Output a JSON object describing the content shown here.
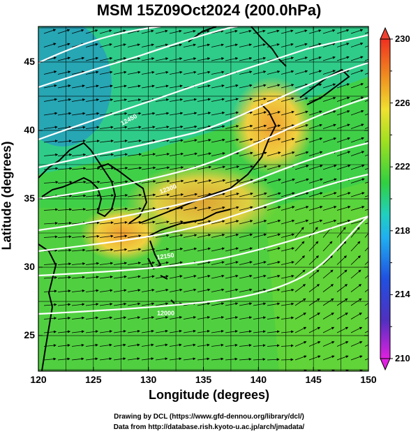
{
  "title": "MSM 15Z09Oct2024 (200.0hPa)",
  "x_axis": {
    "label": "Longitude (degrees)",
    "ticks": [
      "120",
      "125",
      "130",
      "135",
      "140",
      "145",
      "150"
    ],
    "range": [
      120,
      150
    ]
  },
  "y_axis": {
    "label": "Latitude  (degrees)",
    "ticks": [
      "25",
      "30",
      "35",
      "40",
      "45"
    ],
    "range": [
      22.4,
      47.6
    ]
  },
  "colorbar": {
    "ticks": [
      "210",
      "214",
      "218",
      "222",
      "226",
      "230"
    ],
    "range": [
      210,
      230
    ],
    "colors": [
      "#e020e0",
      "#3030c0",
      "#2090f0",
      "#20d0d0",
      "#30d030",
      "#90e020",
      "#f0e030",
      "#f09020",
      "#f04030"
    ]
  },
  "contour_labels": [
    "12450",
    "12300",
    "12150",
    "12000"
  ],
  "credits": {
    "line1": "Drawing by DCL (https://www.gfd-dennou.org/library/dcl/)",
    "line2": "Data from http://database.rish.kyoto-u.ac.jp/arch/jmadata/"
  }
}
